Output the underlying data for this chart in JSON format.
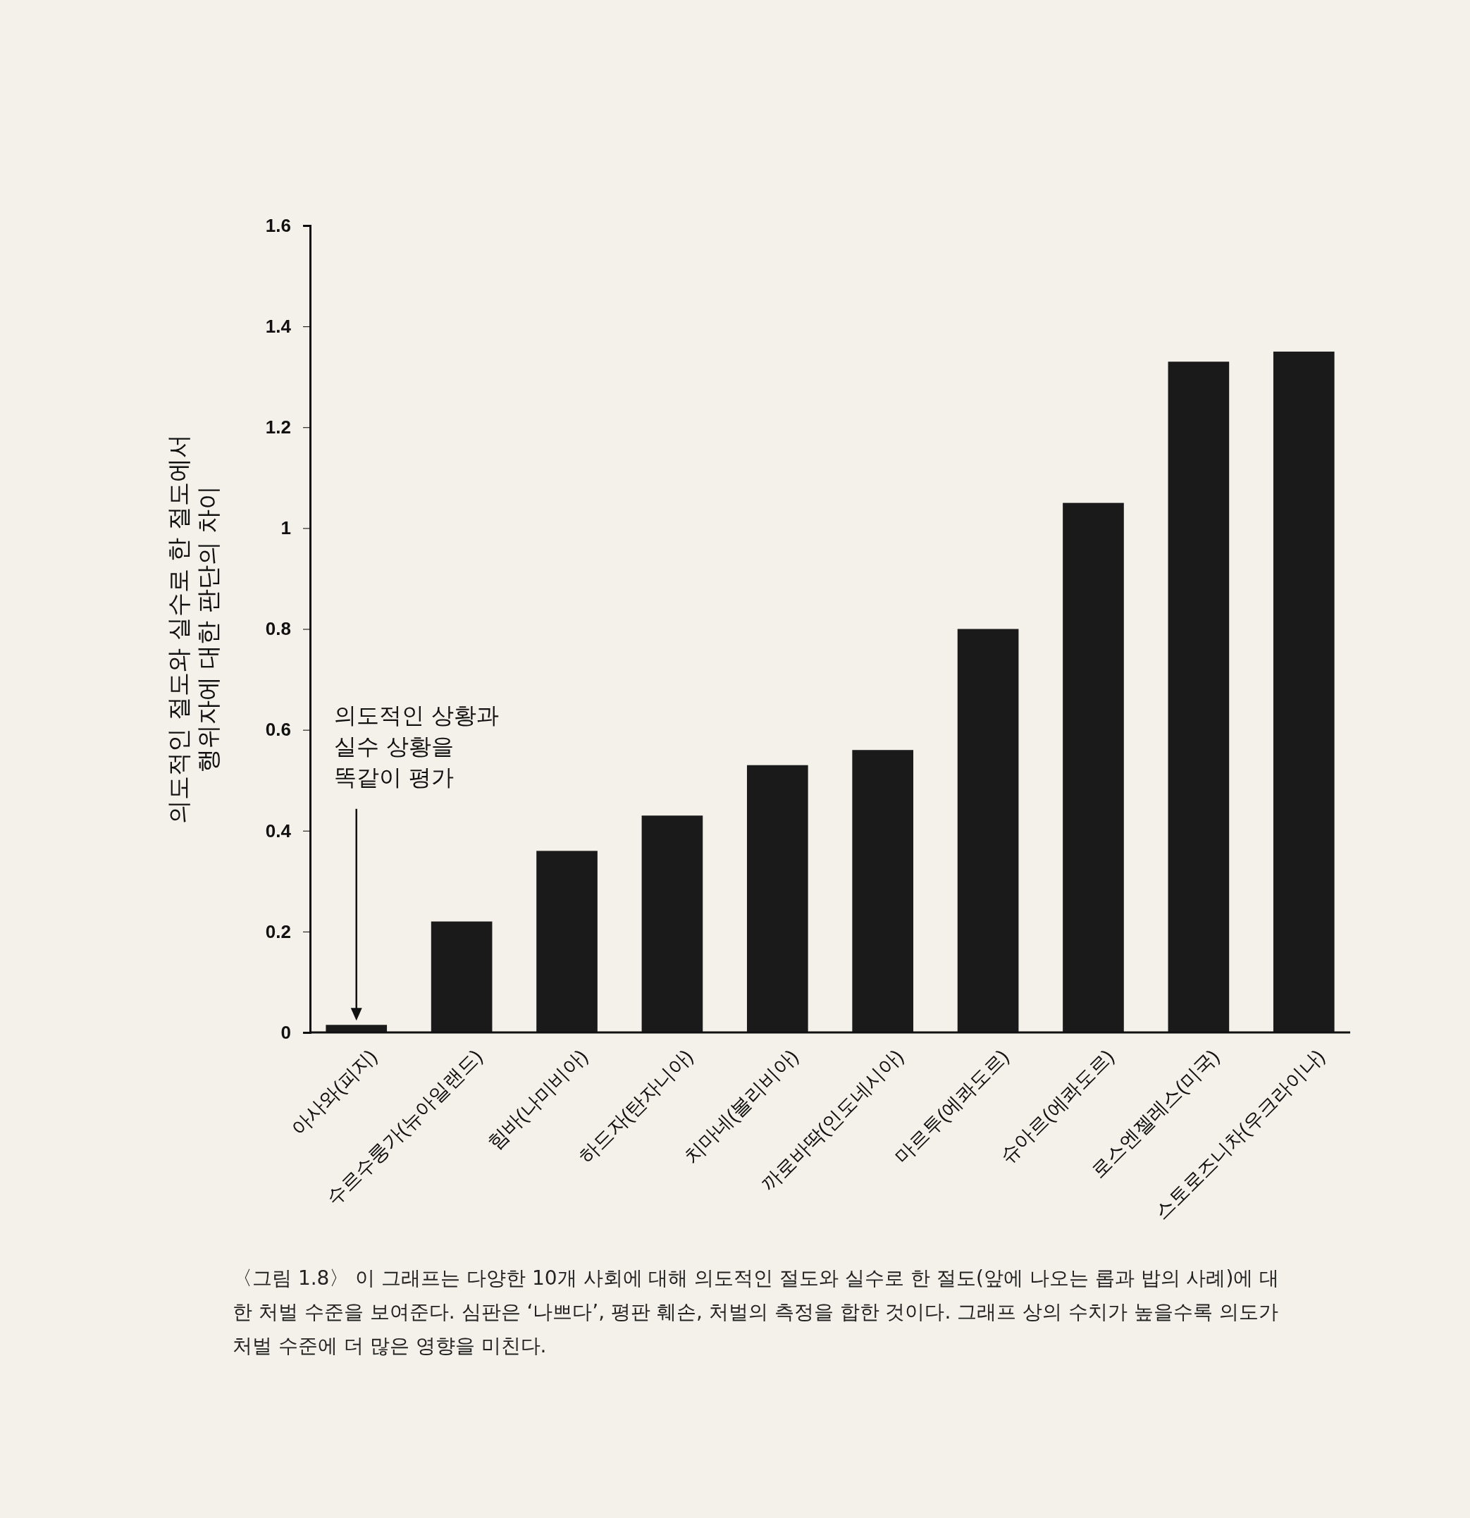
{
  "chart_data": {
    "type": "bar",
    "ylabel": "의도적인 절도와 실수로 한 절도에서\n행위자에 대한 판단의 차이",
    "categories": [
      "아사와(피지)",
      "수르수룽가(뉴아일랜드)",
      "힘바(나미비아)",
      "하드자(탄자니아)",
      "치마네(볼리비아)",
      "까로바딱(인도네시아)",
      "마르투(에콰도르)",
      "슈아르(에콰도르)",
      "로스엔젤레스(미국)",
      "스토로즈니차(우크라이나)"
    ],
    "values": [
      0.015,
      0.22,
      0.36,
      0.43,
      0.53,
      0.56,
      0.8,
      1.05,
      1.33,
      1.35
    ],
    "color": "#1a1a1a",
    "ylim": [
      0,
      1.6
    ],
    "yticks": [
      0,
      0.2,
      0.4,
      0.6,
      0.8,
      1,
      1.2,
      1.4,
      1.6
    ],
    "grid": false,
    "annotations": [
      "의도적인 상황과\n실수 상황을\n똑같이 평가",
      "〈그림 1.8〉 이 그래프는 다양한 10개 사회에 대해 의도적인 절도와 실수로 한 절도(앞에 나오는 롭과 밥의 사례)에 대한 처벌 수준을 보여준다. 심판은 ‘나쁘다’, 평판 훼손, 처벌의 측정을 합한 것이다. 그래프 상의 수치가 높을수록 의도가 처벌 수준에 더 많은 영향을 미친다."
    ]
  }
}
